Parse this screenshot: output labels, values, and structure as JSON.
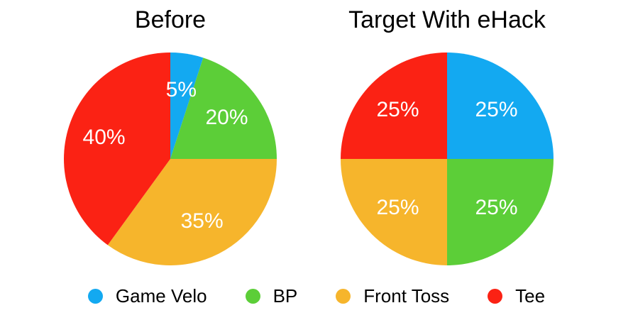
{
  "colors": {
    "background": "#FFFFFF",
    "title_text": "#000000",
    "legend_text": "#000000",
    "game_velo_blue": "#13A9F1",
    "bp_green": "#5CCE38",
    "front_toss_orange": "#F6B52C",
    "tee_red": "#FB2214"
  },
  "chart_data": [
    {
      "type": "pie",
      "title": "Before",
      "categories": [
        "Game Velo",
        "BP",
        "Front Toss",
        "Tee"
      ],
      "values": [
        5,
        20,
        35,
        40
      ],
      "slice_labels": [
        "5%",
        "20%",
        "35%",
        "40%"
      ],
      "colors": [
        "#13A9F1",
        "#5CCE38",
        "#F6B52C",
        "#FB2214"
      ],
      "start_angle_deg": 0,
      "direction": "clockwise",
      "label_color": "#FFFFFF",
      "legend_position": "bottom-shared"
    },
    {
      "type": "pie",
      "title": "Target With eHack",
      "categories": [
        "Game Velo",
        "BP",
        "Front Toss",
        "Tee"
      ],
      "values": [
        25,
        25,
        25,
        25
      ],
      "slice_labels": [
        "25%",
        "25%",
        "25%",
        "25%"
      ],
      "colors": [
        "#13A9F1",
        "#5CCE38",
        "#F6B52C",
        "#FB2214"
      ],
      "start_angle_deg": 0,
      "direction": "clockwise",
      "label_color": "#FFFFFF",
      "legend_position": "bottom-shared"
    }
  ],
  "legend": {
    "items": [
      {
        "label": "Game Velo",
        "color": "#13A9F1"
      },
      {
        "label": "BP",
        "color": "#5CCE38"
      },
      {
        "label": "Front Toss",
        "color": "#F6B52C"
      },
      {
        "label": "Tee",
        "color": "#FB2214"
      }
    ]
  }
}
